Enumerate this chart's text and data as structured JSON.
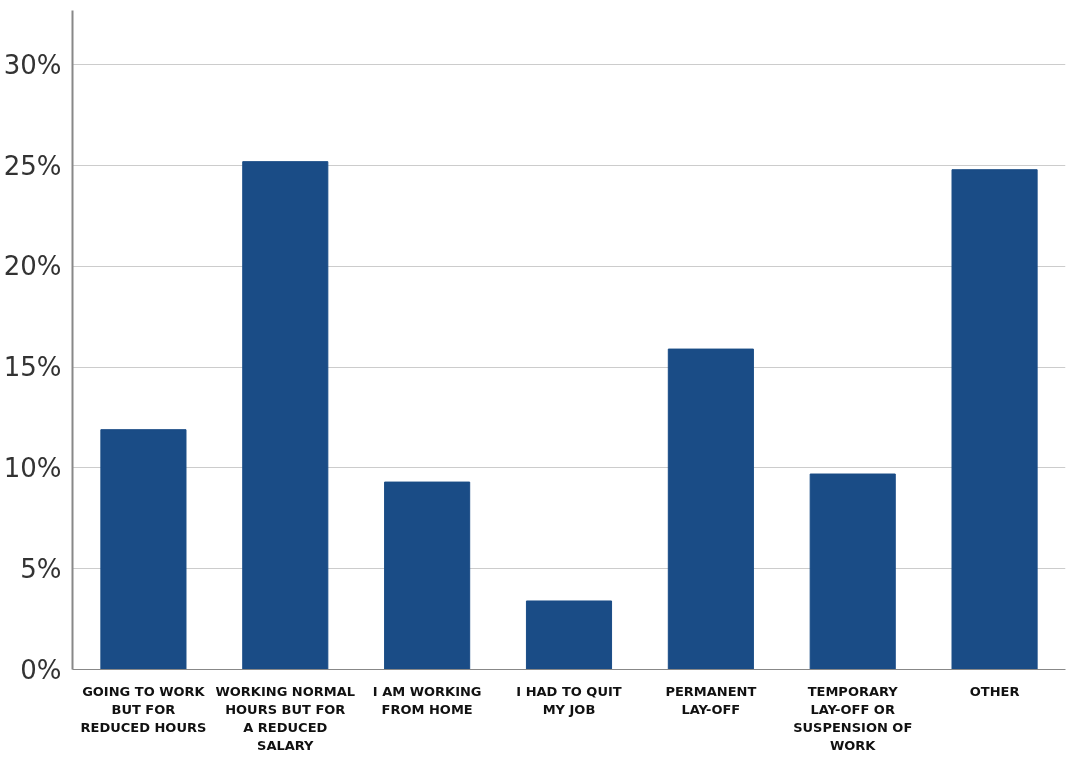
{
  "chart_data": {
    "type": "bar",
    "categories": [
      "GOING TO WORK BUT FOR REDUCED HOURS",
      "WORKING NORMAL HOURS BUT FOR A REDUCED SALARY",
      "I AM WORKING FROM HOME",
      "I HAD TO QUIT MY JOB",
      "PERMANENT LAY-OFF",
      "TEMPORARY LAY-OFF OR SUSPENSION OF WORK",
      "OTHER"
    ],
    "values": [
      11.9,
      25.2,
      9.3,
      3.4,
      15.9,
      9.7,
      24.8
    ],
    "color": "#1a4c86",
    "ylim": [
      0,
      32.7
    ],
    "yticks": [
      {
        "value": 0,
        "label": "0%"
      },
      {
        "value": 5,
        "label": "5%"
      },
      {
        "value": 10,
        "label": "10%"
      },
      {
        "value": 15,
        "label": "15%"
      },
      {
        "value": 20,
        "label": "20%"
      },
      {
        "value": 25,
        "label": "25%"
      },
      {
        "value": 30,
        "label": "30%"
      }
    ],
    "grid": "y"
  }
}
